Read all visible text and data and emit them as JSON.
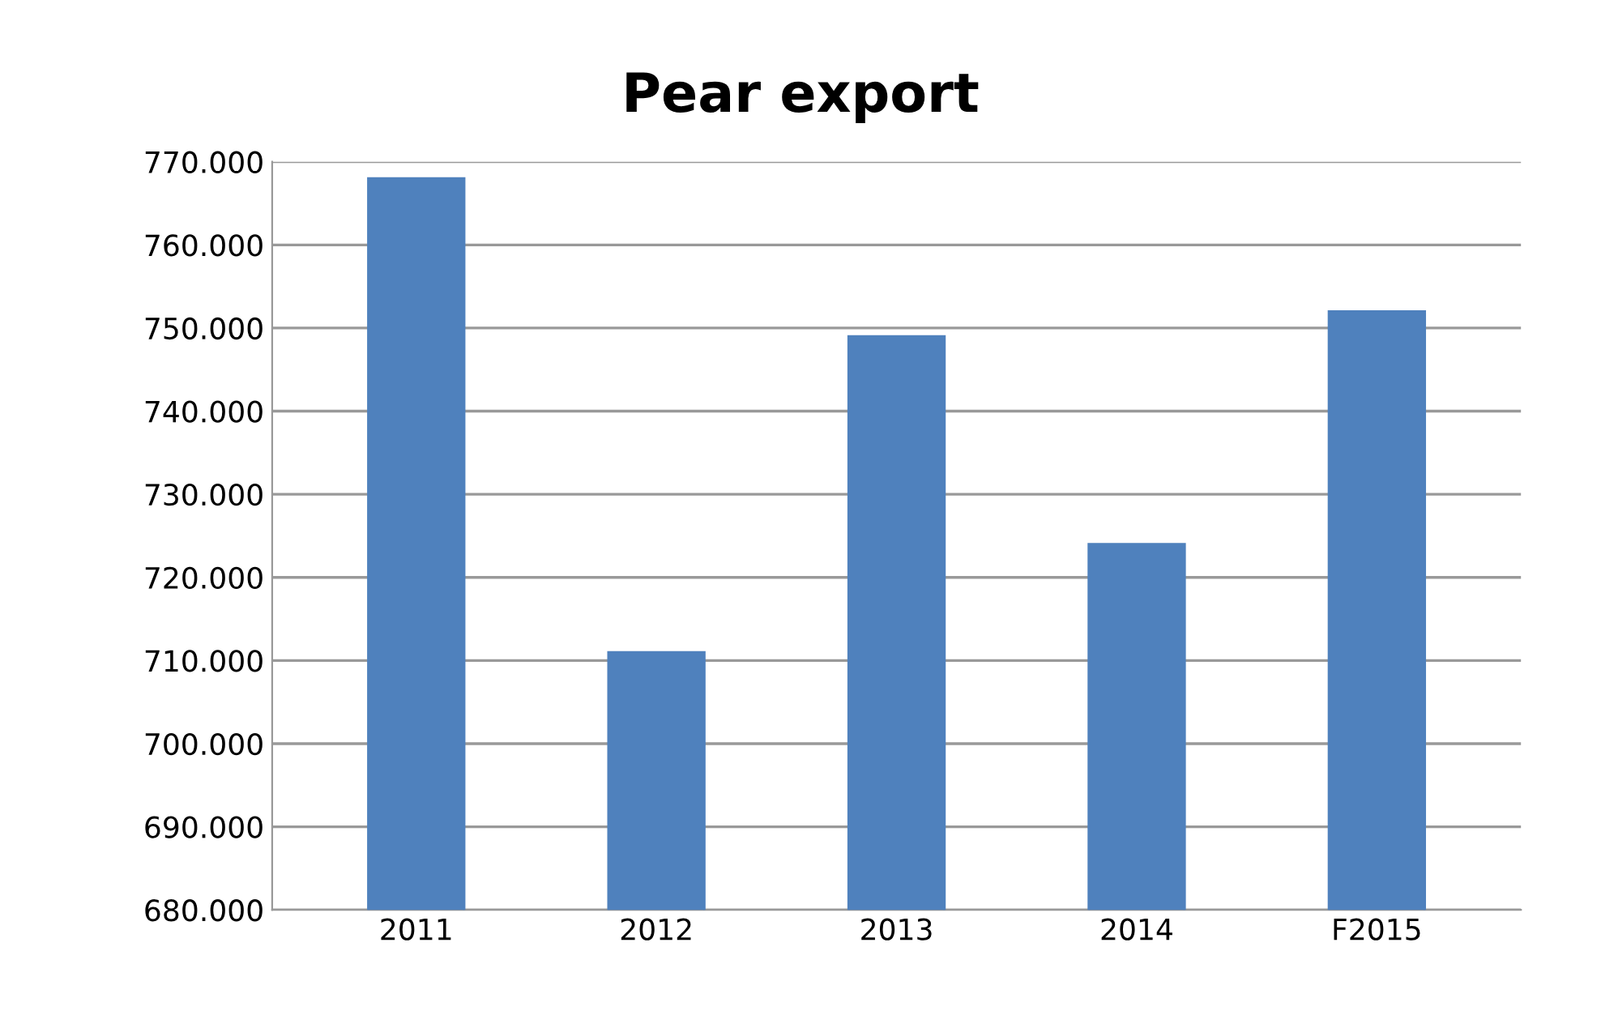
{
  "chart_data": {
    "type": "bar",
    "title": "Pear export",
    "categories": [
      "2011",
      "2012",
      "2013",
      "2014",
      "F2015"
    ],
    "values": [
      768000,
      711000,
      749000,
      724000,
      752000
    ],
    "color": "#4f81bd",
    "ylim": [
      680000,
      770000
    ],
    "yticks": [
      {
        "value": 680000,
        "label": "680.000"
      },
      {
        "value": 690000,
        "label": "690.000"
      },
      {
        "value": 700000,
        "label": "700.000"
      },
      {
        "value": 710000,
        "label": "710.000"
      },
      {
        "value": 720000,
        "label": "720.000"
      },
      {
        "value": 730000,
        "label": "730.000"
      },
      {
        "value": 740000,
        "label": "740.000"
      },
      {
        "value": 750000,
        "label": "750.000"
      },
      {
        "value": 760000,
        "label": "760.000"
      },
      {
        "value": 770000,
        "label": "770.000"
      }
    ],
    "grid": "y"
  }
}
